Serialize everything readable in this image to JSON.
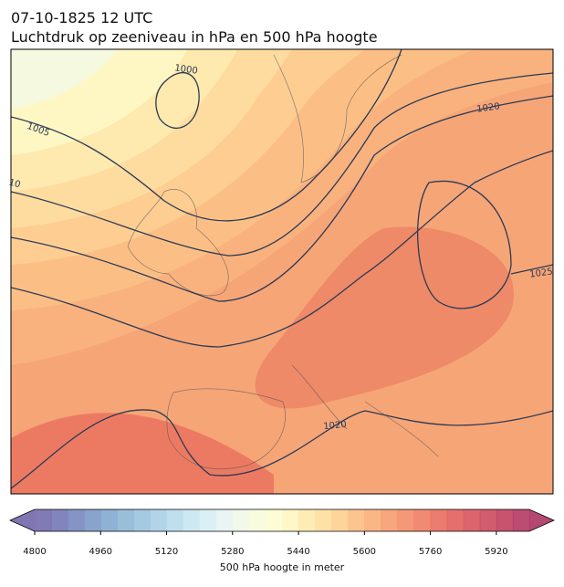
{
  "title": "07-10-1825 12 UTC",
  "subtitle": "Luchtdruk op zeeniveau in hPa en 500 hPa hoogte",
  "contour_labels": [
    "1000",
    "1005",
    "10",
    "1020",
    "1025",
    "1020"
  ],
  "colorbar": {
    "lim": [
      4800,
      6000
    ],
    "ticks": [
      4800,
      4960,
      5120,
      5280,
      5440,
      5600,
      5760,
      5920
    ],
    "label": "500 hPa hoogte in meter",
    "under_color": "#6a5ea3",
    "over_color": "#a8285a",
    "colors": [
      "#6a64a8",
      "#6c6fb0",
      "#6f82bb",
      "#7493c3",
      "#7ba3cb",
      "#86b3d4",
      "#94c1dc",
      "#a4cde4",
      "#b4d9eb",
      "#c5e4f0",
      "#d5edf3",
      "#e4f3f1",
      "#eff8e6",
      "#f7fbd9",
      "#fdfccc",
      "#fff6bd",
      "#fee9a8",
      "#fedc98",
      "#fdcc88",
      "#fbbb7b",
      "#f9a970",
      "#f69767",
      "#f2865f",
      "#ee7659",
      "#e76555",
      "#df5753",
      "#d44a53",
      "#c93f54",
      "#bd3556",
      "#b02d58"
    ]
  }
}
